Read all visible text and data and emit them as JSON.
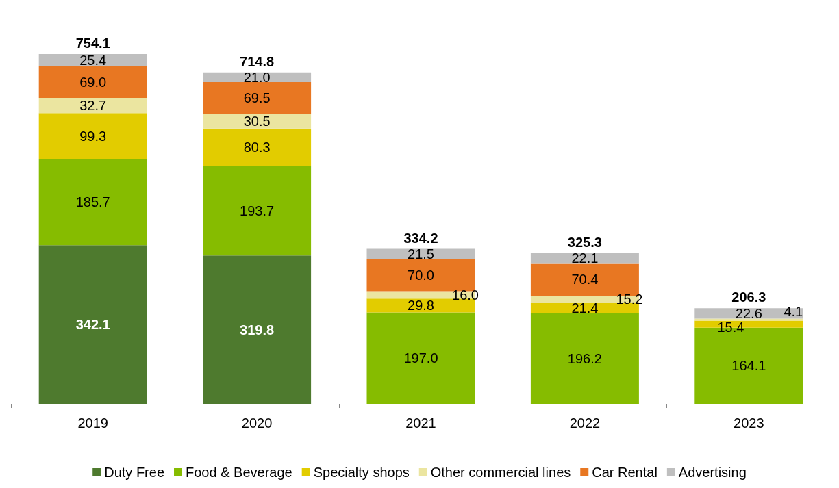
{
  "chart_data": {
    "type": "bar",
    "stacked": true,
    "legend": "bottom",
    "categories": [
      "2019",
      "2020",
      "2021",
      "2022",
      "2023"
    ],
    "series": [
      {
        "name": "Duty Free",
        "color": "#4e7a2e",
        "values": [
          342.1,
          319.8,
          null,
          null,
          null
        ],
        "value_labels": [
          "342.1",
          "319.8",
          null,
          null,
          null
        ]
      },
      {
        "name": "Food & Beverage",
        "color": "#86bc00",
        "values": [
          185.7,
          193.7,
          197.0,
          196.2,
          164.1
        ],
        "value_labels": [
          "185.7",
          "193.7",
          "197.0",
          "196.2",
          "164.1"
        ]
      },
      {
        "name": "Specialty shops",
        "color": "#e2cc00",
        "values": [
          99.3,
          80.3,
          29.8,
          21.4,
          15.4
        ],
        "value_labels": [
          "99.3",
          "80.3",
          "29.8",
          "21.4",
          "15.4"
        ]
      },
      {
        "name": "Other commercial lines",
        "color": "#ebe5a0",
        "values": [
          32.7,
          30.5,
          16.0,
          15.2,
          4.1
        ],
        "value_labels": [
          "32.7",
          "30.5",
          "16.0",
          "15.2",
          "4.1"
        ]
      },
      {
        "name": "Car Rental",
        "color": "#e87722",
        "values": [
          69.0,
          69.5,
          70.0,
          70.4,
          null
        ],
        "value_labels": [
          "69.0",
          "69.5",
          "70.0",
          "70.4",
          null
        ]
      },
      {
        "name": "Advertising",
        "color": "#bfbfbf",
        "values": [
          25.4,
          21.0,
          21.5,
          22.1,
          22.6
        ],
        "value_labels": [
          "25.4",
          "21.0",
          "21.5",
          "22.1",
          "22.6"
        ]
      }
    ],
    "totals": [
      "754.1",
      "714.8",
      "334.2",
      "325.3",
      "206.3"
    ]
  }
}
